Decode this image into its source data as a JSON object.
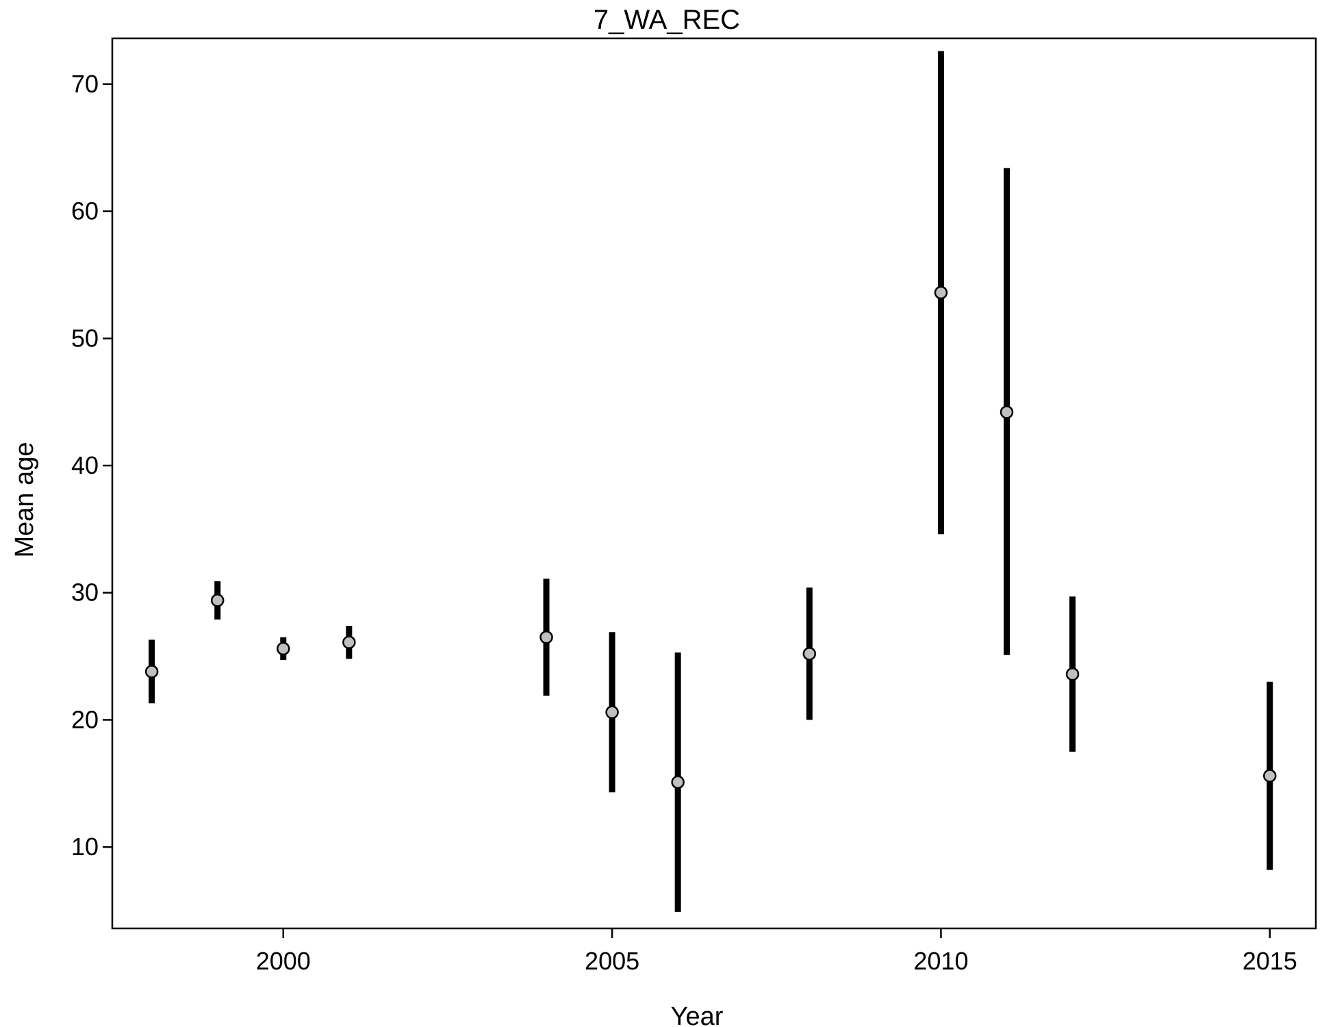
{
  "chart_data": {
    "type": "scatter",
    "title": "7_WA_REC",
    "xlabel": "Year",
    "ylabel": "Mean age",
    "xlim": [
      1997.4,
      2015.7
    ],
    "ylim": [
      3.6,
      73.6
    ],
    "xticks": [
      2000,
      2005,
      2010,
      2015
    ],
    "yticks": [
      10,
      20,
      30,
      40,
      50,
      60,
      70
    ],
    "grid": false,
    "series": [
      {
        "points": [
          {
            "x": 1998,
            "y": 23.8,
            "lo": 21.3,
            "hi": 26.3
          },
          {
            "x": 1999,
            "y": 29.4,
            "lo": 27.9,
            "hi": 30.9
          },
          {
            "x": 2000,
            "y": 25.6,
            "lo": 24.7,
            "hi": 26.5
          },
          {
            "x": 2001,
            "y": 26.1,
            "lo": 24.8,
            "hi": 27.4
          },
          {
            "x": 2004,
            "y": 26.5,
            "lo": 21.9,
            "hi": 31.1
          },
          {
            "x": 2005,
            "y": 20.6,
            "lo": 14.3,
            "hi": 26.9
          },
          {
            "x": 2006,
            "y": 15.1,
            "lo": 4.9,
            "hi": 25.3
          },
          {
            "x": 2008,
            "y": 25.2,
            "lo": 20.0,
            "hi": 30.4
          },
          {
            "x": 2010,
            "y": 53.6,
            "lo": 34.6,
            "hi": 72.6
          },
          {
            "x": 2011,
            "y": 44.2,
            "lo": 25.1,
            "hi": 63.4
          },
          {
            "x": 2012,
            "y": 23.6,
            "lo": 17.5,
            "hi": 29.7
          },
          {
            "x": 2015,
            "y": 15.6,
            "lo": 8.2,
            "hi": 23.0
          }
        ]
      }
    ],
    "colors": {
      "errorbar": "#000000",
      "point_fill": "#c0c0c0",
      "point_stroke": "#000000"
    }
  }
}
